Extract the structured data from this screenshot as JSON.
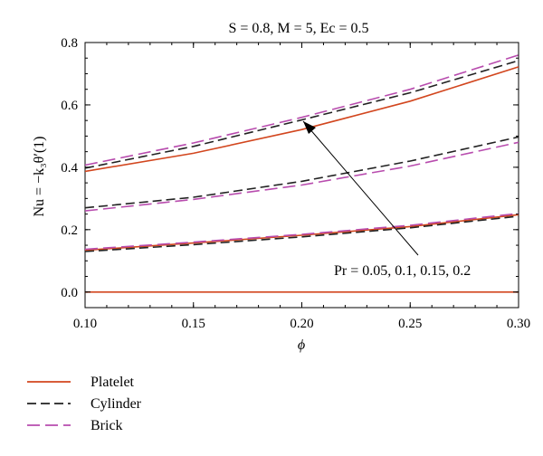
{
  "chart_data": {
    "type": "line",
    "title": "S = 0.8, M = 5, Ec = 0.5",
    "xlabel": "ϕ",
    "ylabel": "Nu = −k₃θ′(1)",
    "xlim": [
      0.1,
      0.3
    ],
    "ylim": [
      -0.05,
      0.8
    ],
    "x_ticks": [
      0.1,
      0.15,
      0.2,
      0.25,
      0.3
    ],
    "x_tick_labels": [
      "0.10",
      "0.15",
      "0.20",
      "0.25",
      "0.30"
    ],
    "y_ticks": [
      0.0,
      0.2,
      0.4,
      0.6,
      0.8
    ],
    "y_tick_labels": [
      "0.0",
      "0.2",
      "0.4",
      "0.6",
      "0.8"
    ],
    "grid": false,
    "legend_position": "below",
    "annotation": "Pr = 0.05, 0.1, 0.15, 0.2",
    "series": [
      {
        "name": "Platelet",
        "color": "#d2461e",
        "dash": "solid",
        "groups": [
          {
            "x": [
              0.1,
              0.15,
              0.2,
              0.25,
              0.3
            ],
            "y": [
              0.387,
              0.445,
              0.521,
              0.612,
              0.722
            ]
          },
          {
            "x": [
              0.1,
              0.15,
              0.2,
              0.25,
              0.3
            ],
            "y": [
              0.134,
              0.157,
              0.182,
              0.21,
              0.248
            ]
          },
          {
            "x": [
              0.1,
              0.2,
              0.3
            ],
            "y": [
              0.0,
              0.0,
              0.0
            ]
          }
        ]
      },
      {
        "name": "Cylinder",
        "color": "#222222",
        "dash": "dashed",
        "groups": [
          {
            "x": [
              0.1,
              0.15,
              0.2,
              0.25,
              0.3
            ],
            "y": [
              0.397,
              0.467,
              0.552,
              0.639,
              0.742
            ]
          },
          {
            "x": [
              0.1,
              0.15,
              0.2,
              0.25,
              0.3
            ],
            "y": [
              0.27,
              0.304,
              0.355,
              0.42,
              0.497
            ]
          },
          {
            "x": [
              0.1,
              0.15,
              0.2,
              0.25,
              0.3
            ],
            "y": [
              0.13,
              0.152,
              0.177,
              0.206,
              0.243
            ]
          }
        ]
      },
      {
        "name": "Brick",
        "color": "#b84cae",
        "dash": "dashed",
        "groups": [
          {
            "x": [
              0.1,
              0.15,
              0.2,
              0.25,
              0.3
            ],
            "y": [
              0.407,
              0.478,
              0.56,
              0.65,
              0.76
            ]
          },
          {
            "x": [
              0.1,
              0.15,
              0.2,
              0.25,
              0.3
            ],
            "y": [
              0.26,
              0.297,
              0.343,
              0.404,
              0.48
            ]
          },
          {
            "x": [
              0.1,
              0.15,
              0.2,
              0.25,
              0.3
            ],
            "y": [
              0.137,
              0.16,
              0.185,
              0.214,
              0.252
            ]
          }
        ]
      }
    ]
  }
}
